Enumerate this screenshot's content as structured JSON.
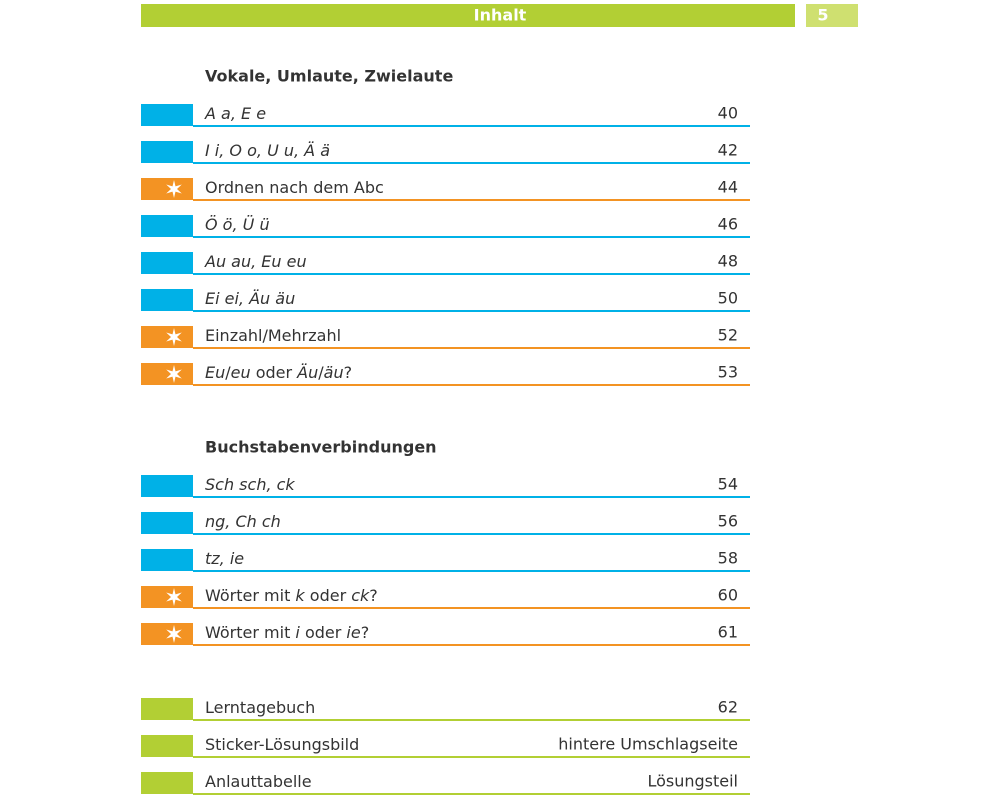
{
  "header": {
    "title": "Inhalt",
    "page": "5"
  },
  "sections": [
    {
      "title": "Vokale, Umlaute, Zwielaute",
      "entries": [
        {
          "title": [
            {
              "text": "A a, E e",
              "italic": true
            }
          ],
          "page": "40",
          "color": "#00b1e7",
          "star": false
        },
        {
          "title": [
            {
              "text": "I i, O o, U u, Ä ä",
              "italic": true
            }
          ],
          "page": "42",
          "color": "#00b1e7",
          "star": false
        },
        {
          "title": [
            {
              "text": "Ordnen nach dem Abc",
              "italic": false
            }
          ],
          "page": "44",
          "color": "#f39323",
          "star": true
        },
        {
          "title": [
            {
              "text": "Ö ö, Ü ü",
              "italic": true
            }
          ],
          "page": "46",
          "color": "#00b1e7",
          "star": false
        },
        {
          "title": [
            {
              "text": "Au au, Eu eu",
              "italic": true
            }
          ],
          "page": "48",
          "color": "#00b1e7",
          "star": false
        },
        {
          "title": [
            {
              "text": "Ei ei, Äu äu",
              "italic": true
            }
          ],
          "page": "50",
          "color": "#00b1e7",
          "star": false
        },
        {
          "title": [
            {
              "text": "Einzahl/Mehrzahl",
              "italic": false
            }
          ],
          "page": "52",
          "color": "#f39323",
          "star": true
        },
        {
          "title": [
            {
              "text": "Eu",
              "italic": true
            },
            {
              "text": "/",
              "italic": false
            },
            {
              "text": "eu",
              "italic": true
            },
            {
              "text": " oder ",
              "italic": false
            },
            {
              "text": "Äu",
              "italic": true
            },
            {
              "text": "/",
              "italic": false
            },
            {
              "text": "äu",
              "italic": true
            },
            {
              "text": "?",
              "italic": false
            }
          ],
          "page": "53",
          "color": "#f39323",
          "star": true
        }
      ]
    },
    {
      "title": "Buchstabenverbindungen",
      "entries": [
        {
          "title": [
            {
              "text": "Sch sch, ck",
              "italic": true
            }
          ],
          "page": "54",
          "color": "#00b1e7",
          "star": false
        },
        {
          "title": [
            {
              "text": "ng, Ch ch",
              "italic": true
            }
          ],
          "page": "56",
          "color": "#00b1e7",
          "star": false
        },
        {
          "title": [
            {
              "text": "tz, ie",
              "italic": true
            }
          ],
          "page": "58",
          "color": "#00b1e7",
          "star": false
        },
        {
          "title": [
            {
              "text": "Wörter mit ",
              "italic": false
            },
            {
              "text": "k",
              "italic": true
            },
            {
              "text": " oder ",
              "italic": false
            },
            {
              "text": "ck",
              "italic": true
            },
            {
              "text": "?",
              "italic": false
            }
          ],
          "page": "60",
          "color": "#f39323",
          "star": true
        },
        {
          "title": [
            {
              "text": "Wörter mit ",
              "italic": false
            },
            {
              "text": "i",
              "italic": true
            },
            {
              "text": " oder ",
              "italic": false
            },
            {
              "text": "ie",
              "italic": true
            },
            {
              "text": "?",
              "italic": false
            }
          ],
          "page": "61",
          "color": "#f39323",
          "star": true
        }
      ]
    },
    {
      "entries": [
        {
          "title": [
            {
              "text": "Lerntagebuch",
              "italic": false
            }
          ],
          "page": "62",
          "color": "#b2cf34",
          "star": false
        },
        {
          "title": [
            {
              "text": "Sticker-Lösungsbild",
              "italic": false
            }
          ],
          "page": "hintere Umschlagseite",
          "color": "#b2cf34",
          "star": false
        },
        {
          "title": [
            {
              "text": "Anlauttabelle",
              "italic": false
            }
          ],
          "page": "Lösungsteil",
          "color": "#b2cf34",
          "star": false
        }
      ]
    }
  ]
}
